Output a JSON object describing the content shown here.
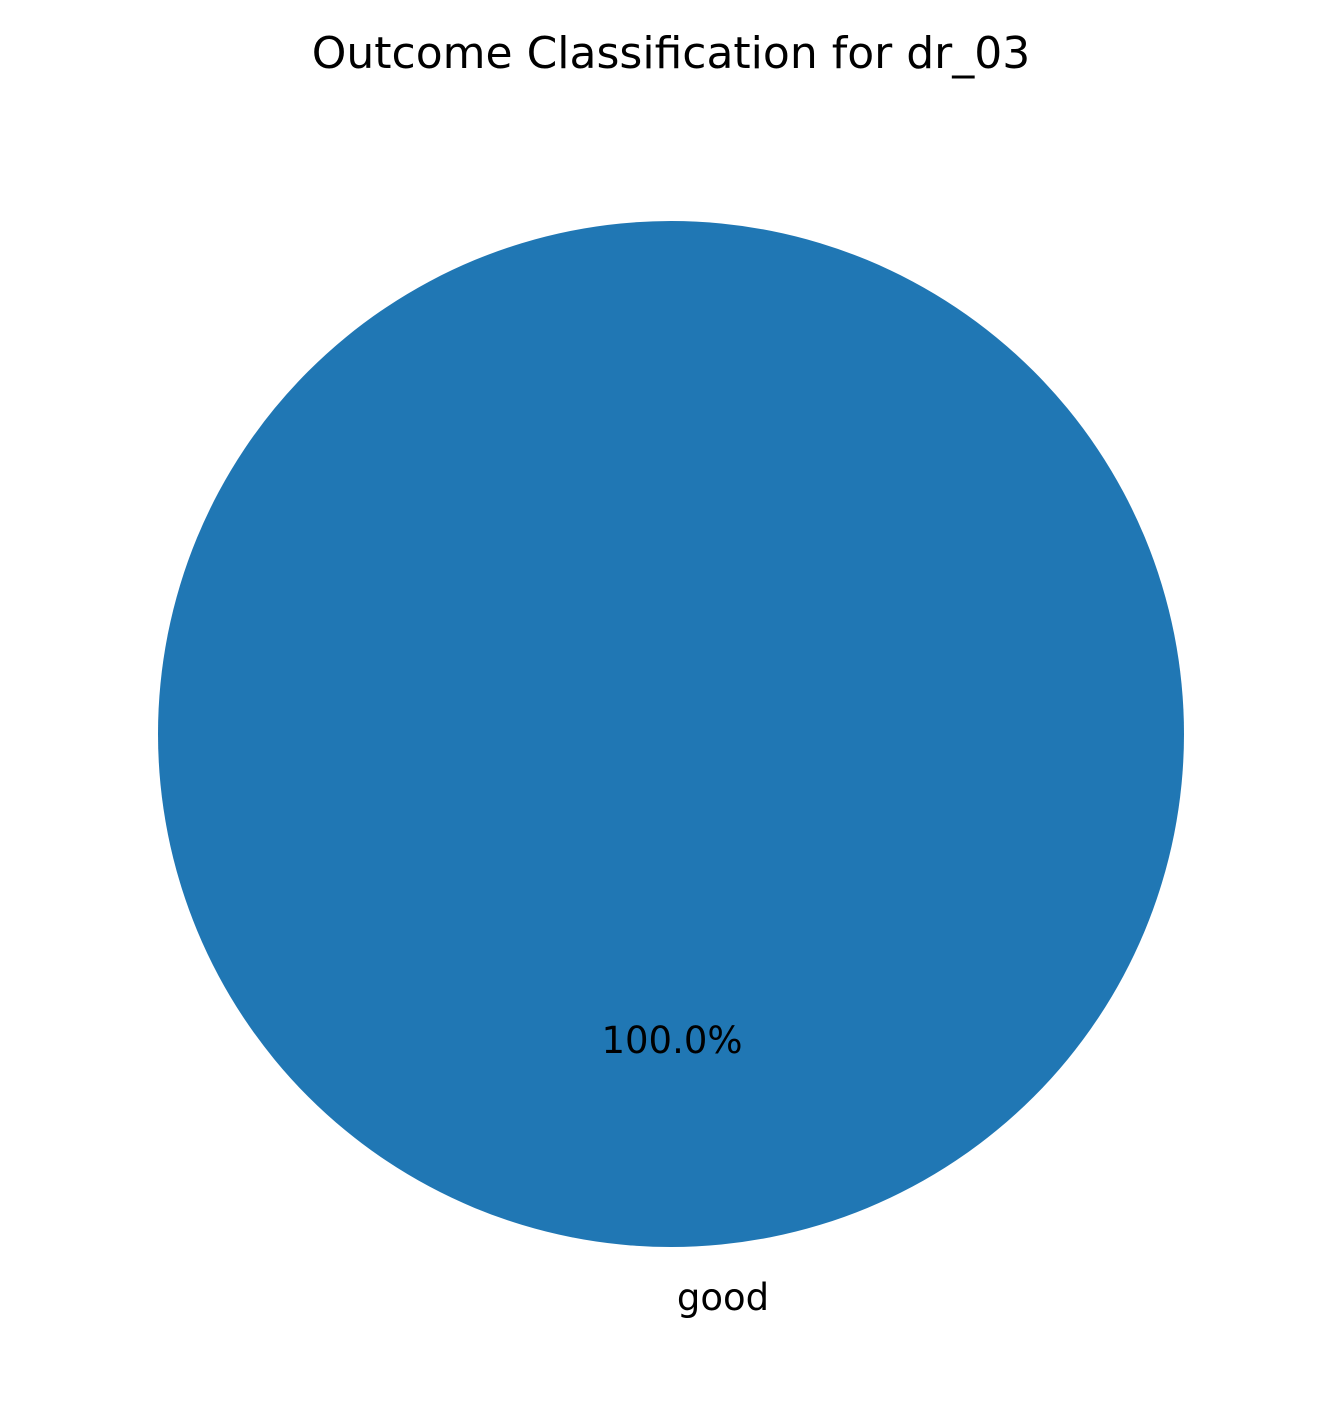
{
  "chart_data": {
    "type": "pie",
    "title": "Outcome Classification for dr_03",
    "slices": [
      {
        "label": "good",
        "value": 100.0,
        "pct_label": "100.0%",
        "color": "#2077b4"
      }
    ],
    "legend": "none"
  }
}
